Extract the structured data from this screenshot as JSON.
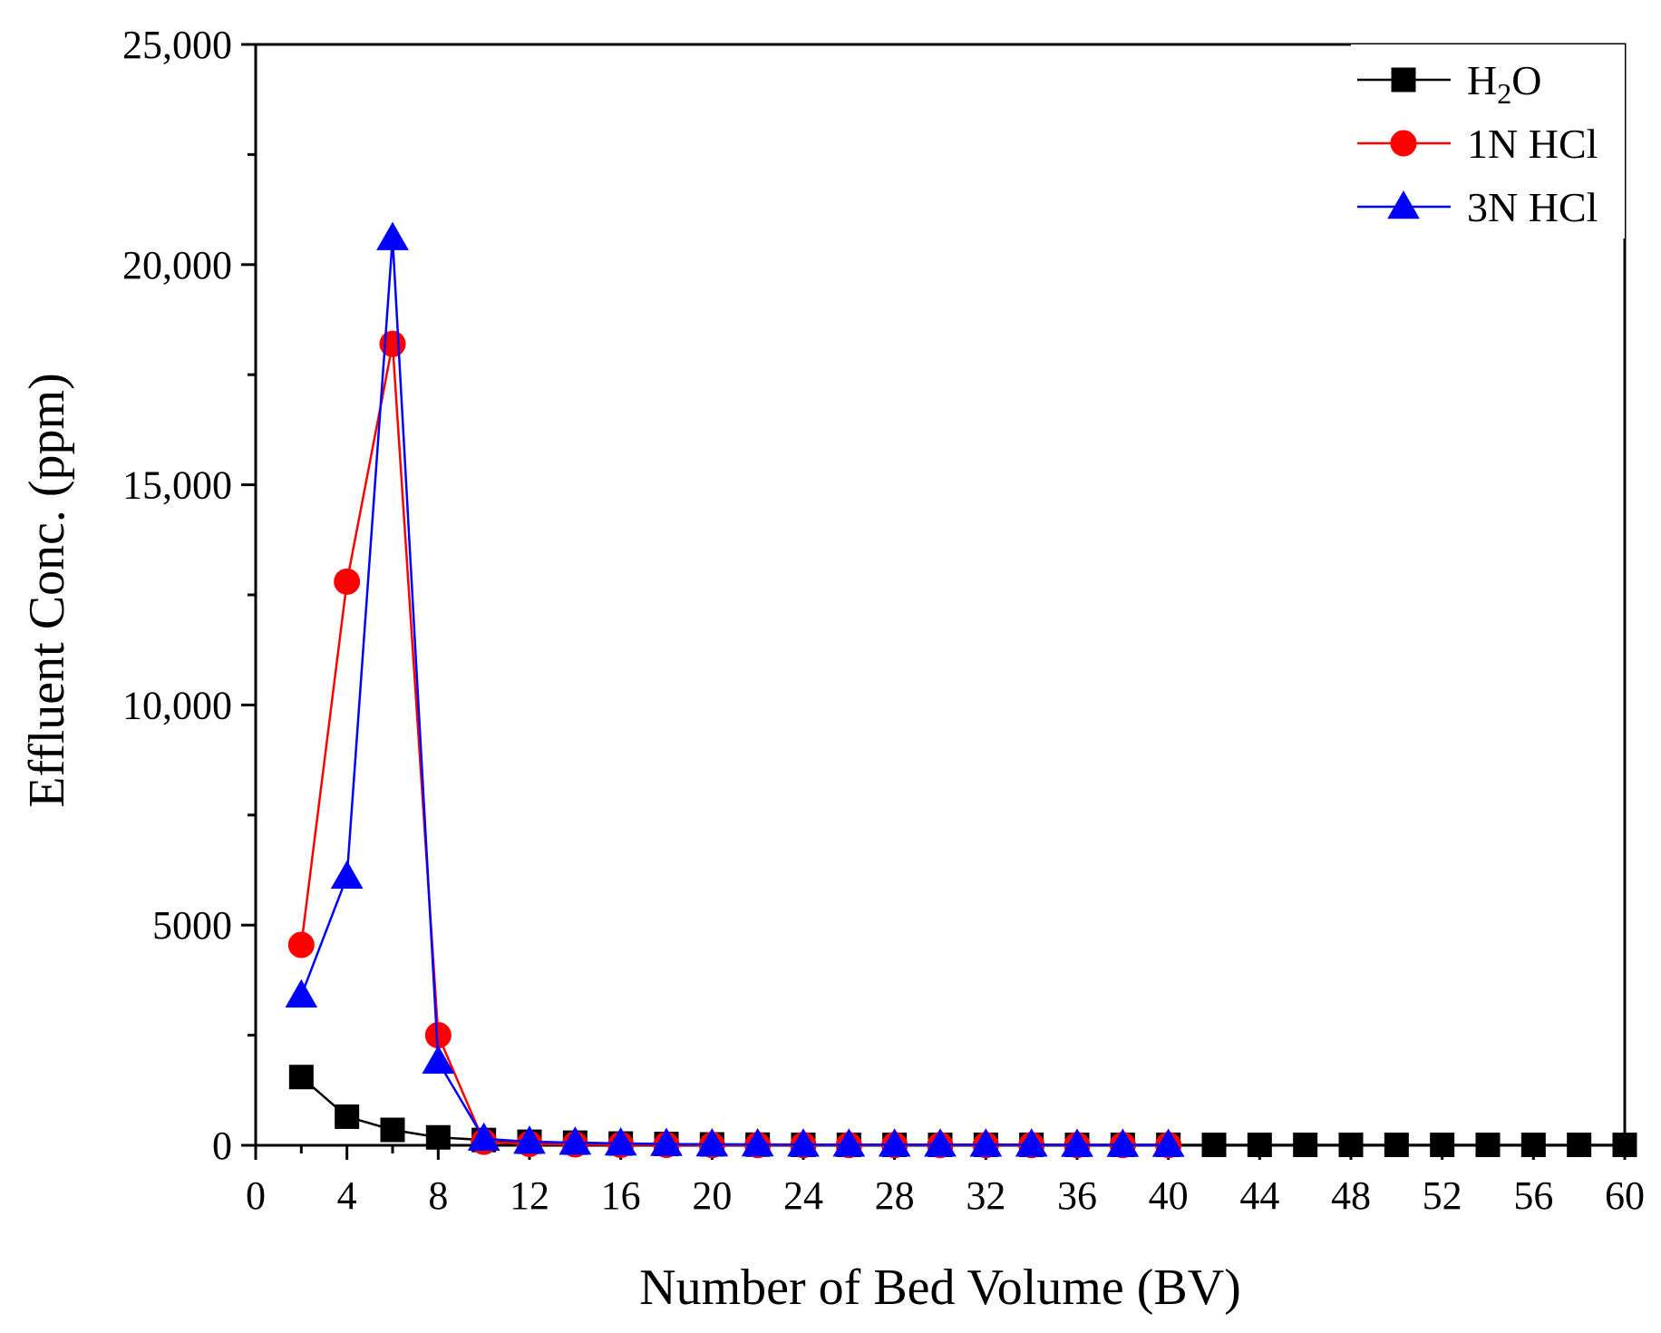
{
  "chart_data": {
    "type": "line",
    "title": "",
    "xlabel": "Number of Bed Volume (BV)",
    "ylabel": "Effluent Conc. (ppm)",
    "xlim": [
      0,
      60
    ],
    "ylim": [
      0,
      25000
    ],
    "x_ticks": [
      0,
      4,
      8,
      12,
      16,
      20,
      24,
      28,
      32,
      36,
      40,
      44,
      48,
      52,
      56,
      60
    ],
    "x_tick_labels": [
      "0",
      "4",
      "8",
      "12",
      "16",
      "20",
      "24",
      "28",
      "32",
      "36",
      "40",
      "44",
      "48",
      "52",
      "56",
      "60"
    ],
    "y_ticks": [
      0,
      5000,
      10000,
      15000,
      20000,
      25000
    ],
    "y_tick_labels": [
      "0",
      "5000",
      "10,000",
      "15,000",
      "20,000",
      "25,000"
    ],
    "grid": false,
    "legend_position": "top-right",
    "series": [
      {
        "name": "H₂O",
        "label_base": "H",
        "label_sub": "2",
        "label_tail": "O",
        "color": "#000000",
        "marker": "square",
        "x": [
          2,
          4,
          6,
          8,
          10,
          12,
          14,
          16,
          18,
          20,
          22,
          24,
          26,
          28,
          30,
          32,
          34,
          36,
          38,
          40,
          42,
          44,
          46,
          48,
          50,
          52,
          54,
          56,
          58,
          60
        ],
        "values": [
          1550,
          650,
          350,
          180,
          120,
          80,
          60,
          40,
          30,
          20,
          15,
          10,
          10,
          10,
          10,
          10,
          10,
          10,
          10,
          10,
          10,
          10,
          10,
          10,
          10,
          10,
          10,
          10,
          10,
          10
        ]
      },
      {
        "name": "1N HCl",
        "color": "#ff0000",
        "marker": "circle",
        "x": [
          2,
          4,
          6,
          8,
          10,
          12,
          14,
          16,
          18,
          20,
          22,
          24,
          26,
          28,
          30,
          32,
          34,
          36,
          38,
          40
        ],
        "values": [
          4550,
          12800,
          18200,
          2500,
          80,
          30,
          20,
          10,
          10,
          5,
          5,
          5,
          5,
          5,
          5,
          5,
          5,
          5,
          5,
          5
        ]
      },
      {
        "name": "3N HCl",
        "color": "#0000ff",
        "marker": "triangle",
        "x": [
          2,
          4,
          6,
          8,
          10,
          12,
          14,
          16,
          18,
          20,
          22,
          24,
          26,
          28,
          30,
          32,
          34,
          36,
          38,
          40
        ],
        "values": [
          3400,
          6100,
          20600,
          1900,
          150,
          80,
          60,
          40,
          30,
          20,
          20,
          15,
          15,
          15,
          15,
          15,
          15,
          10,
          10,
          10
        ]
      }
    ]
  }
}
